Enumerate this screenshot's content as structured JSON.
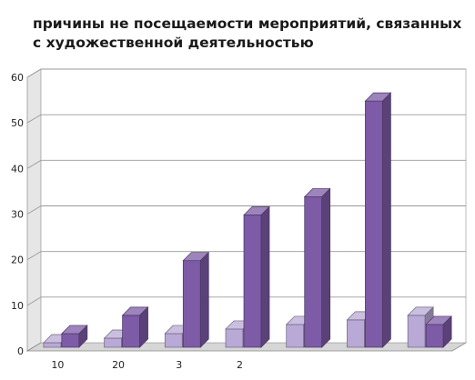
{
  "chart_data": {
    "type": "bar",
    "title": "причины не посещаемости мероприятий, связанных с художественной деятельностью",
    "xlabel": "",
    "ylabel": "",
    "ylim": [
      0,
      60
    ],
    "yticks": [
      "0",
      "10",
      "20",
      "30",
      "40",
      "50",
      "60"
    ],
    "categories": [
      "10",
      "20",
      "3",
      "2",
      "",
      "",
      ""
    ],
    "grid": true,
    "legend": "none",
    "style": "3d",
    "series": [
      {
        "values": [
          1,
          2,
          3,
          4,
          5,
          6,
          7
        ],
        "color": "#b9a9d6"
      },
      {
        "values": [
          3,
          7,
          19,
          29,
          33,
          54,
          5
        ],
        "color": "#7d5ba6"
      }
    ]
  }
}
